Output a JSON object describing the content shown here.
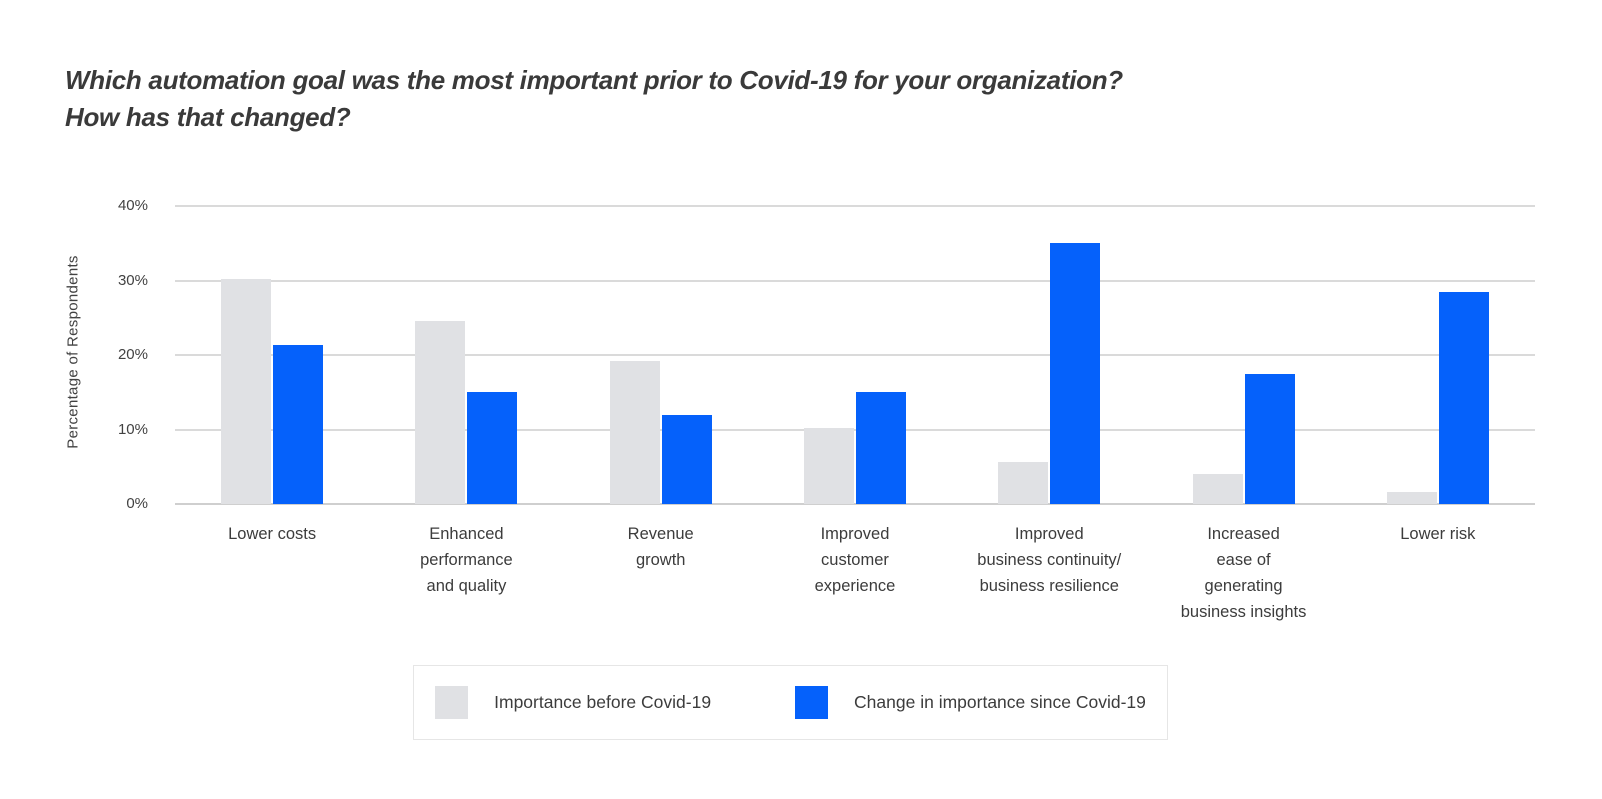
{
  "title": {
    "line1": "Which automation goal was the most important prior to Covid-19 for your organization?",
    "line2": "How has that changed?"
  },
  "chart_data": {
    "type": "bar",
    "title": "Which automation goal was the most important prior to Covid-19 for your organization? How has that changed?",
    "xlabel": "",
    "ylabel": "Percentage of Respondents",
    "ylim": [
      0,
      40
    ],
    "yticks": [
      40,
      30,
      20,
      10,
      0
    ],
    "ytick_suffix": "%",
    "grid": true,
    "legend_position": "bottom",
    "categories": [
      "Lower costs",
      "Enhanced performance and quality",
      "Revenue growth",
      "Improved customer experience",
      "Improved business continuity/ business resilience",
      "Increased ease of generating business insights",
      "Lower risk"
    ],
    "category_lines": [
      [
        "Lower costs"
      ],
      [
        "Enhanced",
        "performance",
        "and quality"
      ],
      [
        "Revenue",
        "growth"
      ],
      [
        "Improved",
        "customer",
        "experience"
      ],
      [
        "Improved",
        "business continuity/",
        "business resilience"
      ],
      [
        "Increased",
        "ease of",
        "generating",
        "business insights"
      ],
      [
        "Lower risk"
      ]
    ],
    "series": [
      {
        "name": "Importance before Covid-19",
        "color": "#e0e1e4",
        "values": [
          30.2,
          24.5,
          19.2,
          10.2,
          5.6,
          4.0,
          1.6
        ]
      },
      {
        "name": "Change in importance since Covid-19",
        "color": "#0561fb",
        "values": [
          21.3,
          15.0,
          12.0,
          15.0,
          35.0,
          17.5,
          28.5
        ]
      }
    ]
  },
  "colors": {
    "series_before": "#e0e1e4",
    "series_since": "#0561fb",
    "gridline": "#dadada",
    "zero_line": "#cfcfcf",
    "title_text": "#3a3a3a",
    "axis_text": "#424242",
    "category_text": "#3c3c3c",
    "legend_border": "#e6e6e6",
    "background": "#ffffff"
  }
}
